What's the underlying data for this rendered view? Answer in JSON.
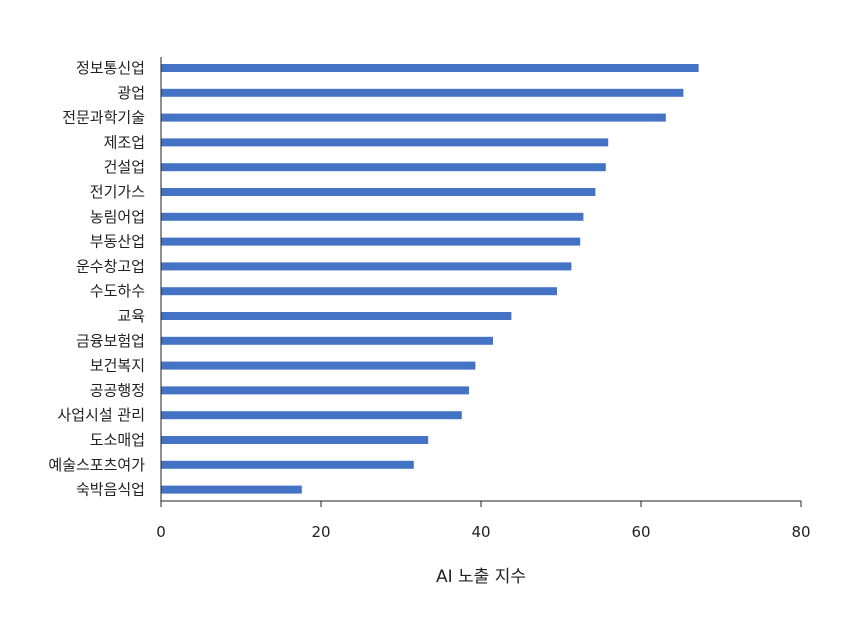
{
  "chart_data": {
    "type": "bar",
    "orientation": "horizontal",
    "categories": [
      "정보통신업",
      "광업",
      "전문과학기술",
      "제조업",
      "건설업",
      "전기가스",
      "농림어업",
      "부동산업",
      "운수창고업",
      "수도하수",
      "교육",
      "금융보험업",
      "보건복지",
      "공공행정",
      "사업시설 관리",
      "도소매업",
      "예술스포츠여가",
      "숙박음식업"
    ],
    "values": [
      67.2,
      65.3,
      63.1,
      55.9,
      55.6,
      54.3,
      52.8,
      52.4,
      51.3,
      49.5,
      43.8,
      41.5,
      39.3,
      38.5,
      37.6,
      33.4,
      31.6,
      17.6
    ],
    "xlabel": "AI 노출 지수",
    "ylabel": "",
    "title": "",
    "xlim": [
      0,
      80
    ],
    "xticks": [
      0,
      20,
      40,
      60,
      80
    ],
    "grid": false,
    "bar_color": "#4472C4"
  }
}
